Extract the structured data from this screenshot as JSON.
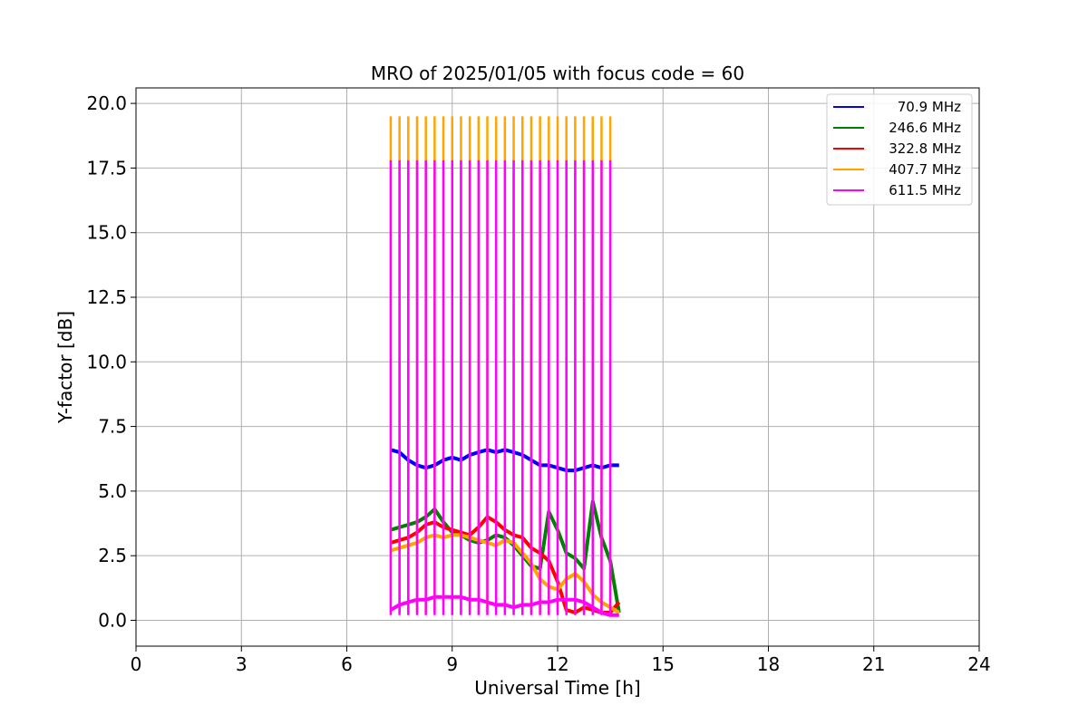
{
  "chart_data": {
    "type": "line",
    "title": "MRO of 2025/01/05 with focus code = 60",
    "xlabel": "Universal Time [h]",
    "ylabel": "Y-factor [dB]",
    "xlim": [
      0,
      24
    ],
    "ylim": [
      -1.0,
      20.6
    ],
    "xticks": [
      0,
      3,
      6,
      9,
      12,
      15,
      18,
      21,
      24
    ],
    "xtick_labels": [
      "0",
      "3",
      "6",
      "9",
      "12",
      "15",
      "18",
      "21",
      "24"
    ],
    "yticks": [
      0.0,
      2.5,
      5.0,
      7.5,
      10.0,
      12.5,
      15.0,
      17.5,
      20.0
    ],
    "ytick_labels": [
      "0.0",
      "2.5",
      "5.0",
      "7.5",
      "10.0",
      "12.5",
      "15.0",
      "17.5",
      "20.0"
    ],
    "grid": true,
    "legend_position": "top-right",
    "calibration_spikes": {
      "x": [
        7.25,
        7.5,
        7.75,
        8.0,
        8.25,
        8.5,
        8.75,
        9.0,
        9.25,
        9.5,
        9.75,
        10.0,
        10.25,
        10.5,
        10.75,
        11.0,
        11.25,
        11.5,
        11.75,
        12.0,
        12.25,
        12.5,
        12.75,
        13.0,
        13.25,
        13.5
      ],
      "orange_peak": 19.5,
      "magenta_peak": 17.8
    },
    "series": [
      {
        "name": " 70.9 MHz",
        "color": "#0000ff",
        "x": [
          7.25,
          7.5,
          7.75,
          8.0,
          8.25,
          8.5,
          8.75,
          9.0,
          9.25,
          9.5,
          9.75,
          10.0,
          10.25,
          10.5,
          10.75,
          11.0,
          11.25,
          11.5,
          11.75,
          12.0,
          12.25,
          12.5,
          12.75,
          13.0,
          13.25,
          13.5,
          13.75
        ],
        "values": [
          6.6,
          6.5,
          6.2,
          6.0,
          5.9,
          6.0,
          6.2,
          6.3,
          6.2,
          6.4,
          6.5,
          6.6,
          6.5,
          6.6,
          6.5,
          6.4,
          6.2,
          6.0,
          6.0,
          5.9,
          5.8,
          5.8,
          5.9,
          6.0,
          5.9,
          6.0,
          6.0
        ]
      },
      {
        "name": "246.6 MHz",
        "color": "#008000",
        "x": [
          7.25,
          7.5,
          7.75,
          8.0,
          8.25,
          8.5,
          8.75,
          9.0,
          9.25,
          9.5,
          9.75,
          10.0,
          10.25,
          10.5,
          10.75,
          11.0,
          11.25,
          11.5,
          11.75,
          12.0,
          12.25,
          12.5,
          12.75,
          13.0,
          13.25,
          13.5,
          13.75
        ],
        "values": [
          3.5,
          3.6,
          3.7,
          3.8,
          4.0,
          4.3,
          3.8,
          3.4,
          3.3,
          3.1,
          3.0,
          3.1,
          3.3,
          3.2,
          2.9,
          2.5,
          2.1,
          2.0,
          4.2,
          3.5,
          2.6,
          2.4,
          2.0,
          4.6,
          3.2,
          2.3,
          0.3
        ]
      },
      {
        "name": "322.8 MHz",
        "color": "#ff0000",
        "x": [
          7.25,
          7.5,
          7.75,
          8.0,
          8.25,
          8.5,
          8.75,
          9.0,
          9.25,
          9.5,
          9.75,
          10.0,
          10.25,
          10.5,
          10.75,
          11.0,
          11.25,
          11.5,
          11.75,
          12.0,
          12.25,
          12.5,
          12.75,
          13.0,
          13.25,
          13.5,
          13.75
        ],
        "values": [
          3.0,
          3.1,
          3.2,
          3.4,
          3.7,
          3.8,
          3.6,
          3.5,
          3.4,
          3.3,
          3.6,
          4.0,
          3.8,
          3.5,
          3.3,
          3.2,
          2.8,
          2.6,
          2.3,
          1.5,
          0.4,
          0.3,
          0.5,
          0.4,
          0.3,
          0.3,
          0.7
        ]
      },
      {
        "name": "407.7 MHz",
        "color": "#ffa500",
        "x": [
          7.25,
          7.5,
          7.75,
          8.0,
          8.25,
          8.5,
          8.75,
          9.0,
          9.25,
          9.5,
          9.75,
          10.0,
          10.25,
          10.5,
          10.75,
          11.0,
          11.25,
          11.5,
          11.75,
          12.0,
          12.25,
          12.5,
          12.75,
          13.0,
          13.25,
          13.5,
          13.75
        ],
        "values": [
          2.7,
          2.8,
          2.9,
          3.0,
          3.2,
          3.3,
          3.2,
          3.3,
          3.3,
          3.2,
          3.1,
          3.0,
          2.9,
          3.1,
          3.0,
          2.6,
          2.2,
          1.6,
          1.3,
          1.2,
          1.6,
          1.8,
          1.5,
          1.0,
          0.7,
          0.5,
          0.3
        ]
      },
      {
        "name": "611.5 MHz",
        "color": "#ff00ff",
        "x": [
          7.25,
          7.5,
          7.75,
          8.0,
          8.25,
          8.5,
          8.75,
          9.0,
          9.25,
          9.5,
          9.75,
          10.0,
          10.25,
          10.5,
          10.75,
          11.0,
          11.25,
          11.5,
          11.75,
          12.0,
          12.25,
          12.5,
          12.75,
          13.0,
          13.25,
          13.5,
          13.75
        ],
        "values": [
          0.4,
          0.6,
          0.7,
          0.8,
          0.8,
          0.9,
          0.9,
          0.9,
          0.9,
          0.8,
          0.8,
          0.7,
          0.6,
          0.6,
          0.5,
          0.6,
          0.6,
          0.7,
          0.7,
          0.8,
          0.8,
          0.8,
          0.7,
          0.5,
          0.3,
          0.2,
          0.2
        ]
      }
    ]
  }
}
